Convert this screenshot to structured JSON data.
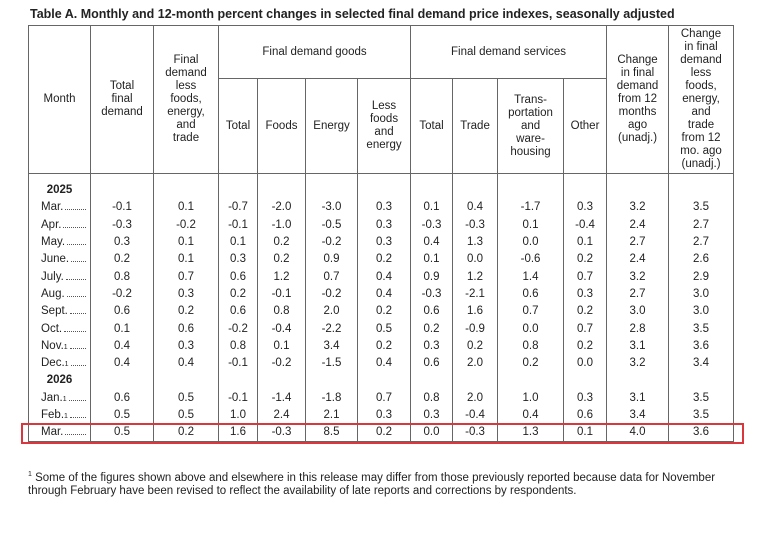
{
  "title": "Table A. Monthly and 12-month percent changes in selected final demand price indexes, seasonally adjusted",
  "table": {
    "header": {
      "month": "Month",
      "total": "Total\nfinal\ndemand",
      "core": "Final\ndemand\nless\nfoods,\nenergy,\nand\ntrade",
      "goods": {
        "label": "Final demand goods",
        "columns": [
          "Total",
          "Foods",
          "Energy",
          "Less\nfoods\nand\nenergy"
        ]
      },
      "services": {
        "label": "Final demand services",
        "columns": [
          "Total",
          "Trade",
          "Trans-\nportation\nand\nware-\nhousing",
          "Other"
        ]
      },
      "change": "Change\nin final\ndemand\nfrom 12\nmonths\nago\n(unadj.)",
      "change_core": "Change\nin final\ndemand\nless\nfoods,\nenergy,\nand\ntrade\nfrom 12\nmo. ago\n(unadj.)"
    },
    "sections": [
      {
        "year": "2025",
        "rows": [
          {
            "month": "Mar.",
            "values": [
              "-0.1",
              "0.1",
              "-0.7",
              "-2.0",
              "-3.0",
              "0.3",
              "0.1",
              "0.4",
              "-1.7",
              "0.3",
              "3.2",
              "3.5"
            ]
          },
          {
            "month": "Apr.",
            "values": [
              "-0.3",
              "-0.2",
              "-0.1",
              "-1.0",
              "-0.5",
              "0.3",
              "-0.3",
              "-0.3",
              "0.1",
              "-0.4",
              "2.4",
              "2.7"
            ]
          },
          {
            "month": "May.",
            "values": [
              "0.3",
              "0.1",
              "0.1",
              "0.2",
              "-0.2",
              "0.3",
              "0.4",
              "1.3",
              "0.0",
              "0.1",
              "2.7",
              "2.7"
            ]
          },
          {
            "month": "June.",
            "values": [
              "0.2",
              "0.1",
              "0.3",
              "0.2",
              "0.9",
              "0.2",
              "0.1",
              "0.0",
              "-0.6",
              "0.2",
              "2.4",
              "2.6"
            ]
          },
          {
            "month": "July.",
            "values": [
              "0.8",
              "0.7",
              "0.6",
              "1.2",
              "0.7",
              "0.4",
              "0.9",
              "1.2",
              "1.4",
              "0.7",
              "3.2",
              "2.9"
            ]
          },
          {
            "month": "Aug.",
            "values": [
              "-0.2",
              "0.3",
              "0.2",
              "-0.1",
              "-0.2",
              "0.4",
              "-0.3",
              "-2.1",
              "0.6",
              "0.3",
              "2.7",
              "3.0"
            ]
          },
          {
            "month": "Sept.",
            "values": [
              "0.6",
              "0.2",
              "0.6",
              "0.8",
              "2.0",
              "0.2",
              "0.6",
              "1.6",
              "0.7",
              "0.2",
              "3.0",
              "3.0"
            ]
          },
          {
            "month": "Oct.",
            "values": [
              "0.1",
              "0.6",
              "-0.2",
              "-0.4",
              "-2.2",
              "0.5",
              "0.2",
              "-0.9",
              "0.0",
              "0.7",
              "2.8",
              "3.5"
            ]
          },
          {
            "month": "Nov.",
            "note": "1",
            "values": [
              "0.4",
              "0.3",
              "0.8",
              "0.1",
              "3.4",
              "0.2",
              "0.3",
              "0.2",
              "0.8",
              "0.2",
              "3.1",
              "3.6"
            ]
          },
          {
            "month": "Dec.",
            "note": "1",
            "values": [
              "0.4",
              "0.4",
              "-0.1",
              "-0.2",
              "-1.5",
              "0.4",
              "0.6",
              "2.0",
              "0.2",
              "0.0",
              "3.2",
              "3.4"
            ]
          }
        ]
      },
      {
        "year": "2026",
        "rows": [
          {
            "month": "Jan.",
            "note": "1",
            "values": [
              "0.6",
              "0.5",
              "-0.1",
              "-1.4",
              "-1.8",
              "0.7",
              "0.8",
              "2.0",
              "1.0",
              "0.3",
              "3.1",
              "3.5"
            ]
          },
          {
            "month": "Feb.",
            "note": "1",
            "values": [
              "0.5",
              "0.5",
              "1.0",
              "2.4",
              "2.1",
              "0.3",
              "0.3",
              "-0.4",
              "0.4",
              "0.6",
              "3.4",
              "3.5"
            ]
          },
          {
            "month": "Mar.",
            "highlighted": true,
            "values": [
              "0.5",
              "0.2",
              "1.6",
              "-0.3",
              "8.5",
              "0.2",
              "0.0",
              "-0.3",
              "1.3",
              "0.1",
              "4.0",
              "3.6"
            ]
          }
        ]
      }
    ]
  },
  "footnote": {
    "marker": "1",
    "text": "Some of the figures shown above and elsewhere in this release may differ from those previously reported because data for November through February have been revised to reflect the availability of late reports and corrections by respondents."
  }
}
